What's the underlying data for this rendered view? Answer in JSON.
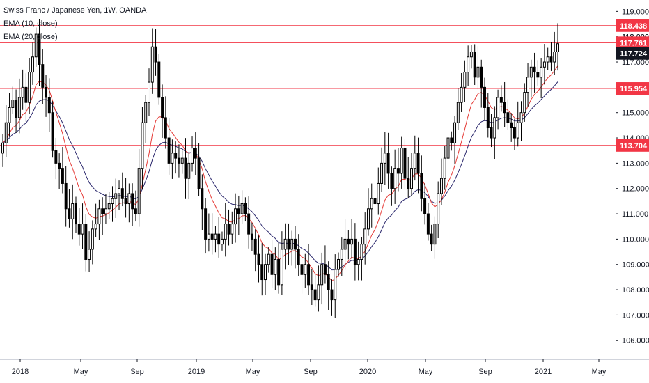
{
  "chart_data": {
    "type": "candlestick",
    "title": "Swiss Franc / Japanese Yen, 1W, OANDA",
    "legend": [
      "EMA (10, close)",
      "EMA (20, close)"
    ],
    "y_axis_ticks": [
      "106.000",
      "107.000",
      "108.000",
      "109.000",
      "110.000",
      "111.000",
      "112.000",
      "113.000",
      "114.000",
      "115.000",
      "116.000",
      "117.000",
      "118.000",
      "119.000"
    ],
    "y_axis_tick_values": [
      106,
      107,
      108,
      109,
      110,
      111,
      112,
      113,
      114,
      115,
      116,
      117,
      118,
      119
    ],
    "x_axis_ticks": [
      "2018",
      "May",
      "Sep",
      "2019",
      "May",
      "Sep",
      "2020",
      "May",
      "Sep",
      "2021",
      "May"
    ],
    "ylim": [
      105.25,
      119.45
    ],
    "horizontal_levels": [
      {
        "label": "118.438",
        "value": 118.438,
        "color": "#f23645"
      },
      {
        "label": "117.761",
        "value": 117.761,
        "color": "#f23645"
      },
      {
        "label": "115.954",
        "value": 115.954,
        "color": "#f23645"
      },
      {
        "label": "113.704",
        "value": 113.704,
        "color": "#f23645"
      }
    ],
    "last_price": {
      "label": "117.724",
      "value": 117.724,
      "color": "#131722"
    },
    "hidden_tick_partial": "118.000",
    "ema_colors": {
      "ema10": "#e53935",
      "ema20": "#2d2a6e"
    },
    "candle_colors": {
      "up": "#ffffff",
      "down": "#000000",
      "wick": "#000000"
    },
    "weekly_closes": [
      113.8,
      114.6,
      115.2,
      115.5,
      114.8,
      115.6,
      116.0,
      115.4,
      116.6,
      117.2,
      118.1,
      116.9,
      116.0,
      115.6,
      115.0,
      113.5,
      113.0,
      112.8,
      112.2,
      111.2,
      110.8,
      111.4,
      110.6,
      110.2,
      110.6,
      109.2,
      109.6,
      110.4,
      110.6,
      111.2,
      111.0,
      111.2,
      111.4,
      111.6,
      111.8,
      112.0,
      111.6,
      111.4,
      111.8,
      111.2,
      111.0,
      112.8,
      114.6,
      115.4,
      116.2,
      117.6,
      117.0,
      115.6,
      114.8,
      114.0,
      113.0,
      113.4,
      113.2,
      113.0,
      113.2,
      112.4,
      113.0,
      113.6,
      113.2,
      112.0,
      111.2,
      110.0,
      110.2,
      110.0,
      110.2,
      109.8,
      110.0,
      110.6,
      110.2,
      110.6,
      111.2,
      111.0,
      111.4,
      111.0,
      110.2,
      110.0,
      109.4,
      109.0,
      108.4,
      109.0,
      109.4,
      108.6,
      109.2,
      108.2,
      109.6,
      110.0,
      109.6,
      110.0,
      109.6,
      109.0,
      108.6,
      109.0,
      108.2,
      108.0,
      107.6,
      108.2,
      109.0,
      108.6,
      108.0,
      107.6,
      108.8,
      109.2,
      109.6,
      110.0,
      109.8,
      110.0,
      109.0,
      109.2,
      109.8,
      110.4,
      111.2,
      111.6,
      111.4,
      112.2,
      113.0,
      113.4,
      112.6,
      112.0,
      112.8,
      112.6,
      113.6,
      112.4,
      112.0,
      112.8,
      113.4,
      112.6,
      111.6,
      111.0,
      110.2,
      109.8,
      110.6,
      111.8,
      112.4,
      113.2,
      114.0,
      113.8,
      114.6,
      115.4,
      116.0,
      116.6,
      117.2,
      117.4,
      116.4,
      116.8,
      116.0,
      115.2,
      114.4,
      114.0,
      114.8,
      115.6,
      115.4,
      115.0,
      114.6,
      114.4,
      114.0,
      114.6,
      115.0,
      115.8,
      116.4,
      116.8,
      116.6,
      116.4,
      116.8,
      117.0,
      117.2,
      117.0,
      117.4,
      117.724
    ]
  }
}
